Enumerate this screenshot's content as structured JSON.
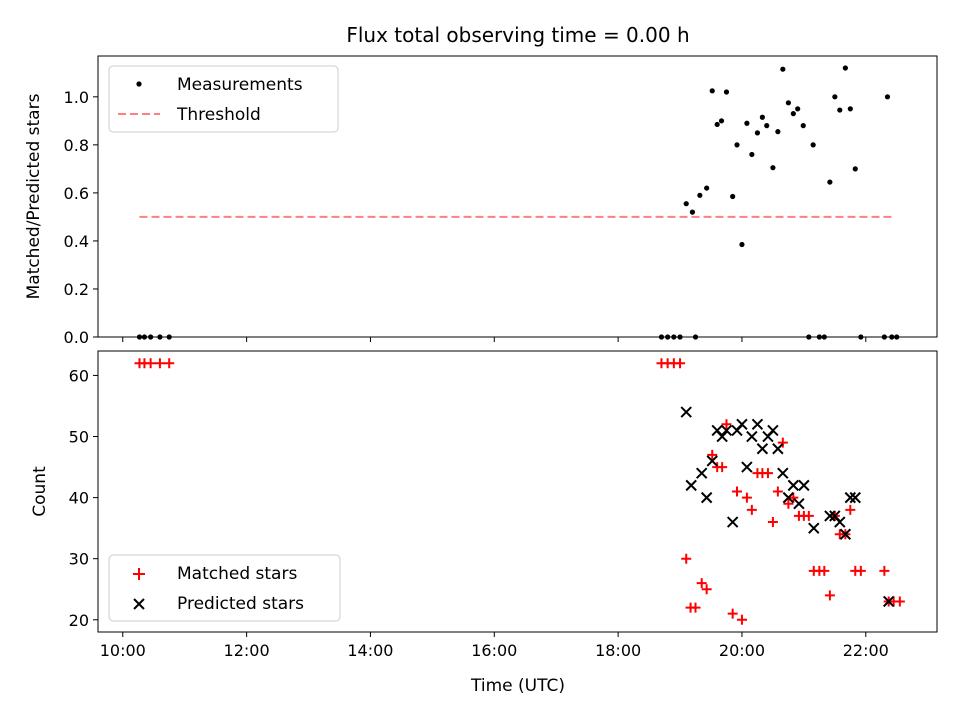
{
  "chart_data": [
    {
      "type": "scatter",
      "title": "Flux total observing time = 0.00 h",
      "xlabel": "",
      "ylabel": "Matched/Predicted stars",
      "xlim": [
        9.6,
        23.15
      ],
      "ylim": [
        0,
        1.17
      ],
      "yticks": [
        0.0,
        0.2,
        0.4,
        0.6,
        0.8,
        1.0
      ],
      "ytick_labels": [
        "0.0",
        "0.2",
        "0.4",
        "0.6",
        "0.8",
        "1.0"
      ],
      "legend_position": "top-left",
      "series": [
        {
          "name": "Measurements",
          "kind": "points",
          "color": "#000000",
          "points": [
            [
              10.27,
              0.0
            ],
            [
              10.35,
              0.0
            ],
            [
              10.45,
              0.0
            ],
            [
              10.6,
              0.0
            ],
            [
              10.75,
              0.0
            ],
            [
              18.7,
              0.0
            ],
            [
              18.8,
              0.0
            ],
            [
              18.9,
              0.0
            ],
            [
              19.0,
              0.0
            ],
            [
              19.1,
              0.555
            ],
            [
              19.2,
              0.52
            ],
            [
              19.25,
              0.0
            ],
            [
              19.32,
              0.59
            ],
            [
              19.43,
              0.62
            ],
            [
              19.52,
              1.025
            ],
            [
              19.6,
              0.885
            ],
            [
              19.67,
              0.9
            ],
            [
              19.75,
              1.02
            ],
            [
              19.85,
              0.585
            ],
            [
              19.92,
              0.8
            ],
            [
              20.0,
              0.385
            ],
            [
              20.08,
              0.89
            ],
            [
              20.16,
              0.76
            ],
            [
              20.25,
              0.85
            ],
            [
              20.33,
              0.915
            ],
            [
              20.4,
              0.88
            ],
            [
              20.5,
              0.705
            ],
            [
              20.58,
              0.855
            ],
            [
              20.66,
              1.115
            ],
            [
              20.75,
              0.975
            ],
            [
              20.83,
              0.93
            ],
            [
              20.9,
              0.95
            ],
            [
              20.99,
              0.88
            ],
            [
              21.08,
              0.0
            ],
            [
              21.15,
              0.8
            ],
            [
              21.25,
              0.0
            ],
            [
              21.33,
              0.0
            ],
            [
              21.42,
              0.645
            ],
            [
              21.5,
              1.0
            ],
            [
              21.58,
              0.945
            ],
            [
              21.67,
              1.12
            ],
            [
              21.75,
              0.95
            ],
            [
              21.83,
              0.7
            ],
            [
              21.92,
              0.0
            ],
            [
              22.3,
              0.0
            ],
            [
              22.35,
              1.0
            ],
            [
              22.42,
              0.0
            ],
            [
              22.5,
              0.0
            ]
          ]
        },
        {
          "name": "Threshold",
          "kind": "dashed-line",
          "color": "#ff8080",
          "points": [
            [
              10.27,
              0.5
            ],
            [
              22.45,
              0.5
            ]
          ]
        }
      ]
    },
    {
      "type": "scatter",
      "title": "",
      "xlabel": "Time (UTC)",
      "ylabel": "Count",
      "xlim": [
        9.6,
        23.15
      ],
      "ylim": [
        18,
        64
      ],
      "xticks": [
        10,
        12,
        14,
        16,
        18,
        20,
        22
      ],
      "xtick_labels": [
        "10:00",
        "12:00",
        "14:00",
        "16:00",
        "18:00",
        "20:00",
        "22:00"
      ],
      "yticks": [
        20,
        30,
        40,
        50,
        60
      ],
      "ytick_labels": [
        "20",
        "30",
        "40",
        "50",
        "60"
      ],
      "legend_position": "bottom-left",
      "series": [
        {
          "name": "Matched stars",
          "kind": "plus",
          "color": "#ff0000",
          "points": [
            [
              10.27,
              62
            ],
            [
              10.35,
              62
            ],
            [
              10.45,
              62
            ],
            [
              10.6,
              62
            ],
            [
              10.75,
              62
            ],
            [
              18.7,
              62
            ],
            [
              18.8,
              62
            ],
            [
              18.9,
              62
            ],
            [
              19.0,
              62
            ],
            [
              19.1,
              30
            ],
            [
              19.17,
              22
            ],
            [
              19.25,
              22
            ],
            [
              19.35,
              26
            ],
            [
              19.43,
              25
            ],
            [
              19.52,
              47
            ],
            [
              19.6,
              45
            ],
            [
              19.68,
              45
            ],
            [
              19.75,
              52
            ],
            [
              19.85,
              21
            ],
            [
              19.92,
              41
            ],
            [
              20.0,
              20
            ],
            [
              20.08,
              40
            ],
            [
              20.16,
              38
            ],
            [
              20.25,
              44
            ],
            [
              20.33,
              44
            ],
            [
              20.42,
              44
            ],
            [
              20.5,
              36
            ],
            [
              20.58,
              41
            ],
            [
              20.66,
              49
            ],
            [
              20.75,
              39
            ],
            [
              20.83,
              40
            ],
            [
              20.92,
              37
            ],
            [
              21.0,
              37
            ],
            [
              21.08,
              37
            ],
            [
              21.16,
              28
            ],
            [
              21.25,
              28
            ],
            [
              21.33,
              28
            ],
            [
              21.42,
              24
            ],
            [
              21.5,
              37
            ],
            [
              21.58,
              34
            ],
            [
              21.67,
              34
            ],
            [
              21.75,
              38
            ],
            [
              21.83,
              28
            ],
            [
              21.92,
              28
            ],
            [
              22.3,
              28
            ],
            [
              22.37,
              23
            ],
            [
              22.45,
              23
            ],
            [
              22.55,
              23
            ]
          ]
        },
        {
          "name": "Predicted stars",
          "kind": "cross",
          "color": "#000000",
          "points": [
            [
              19.1,
              54
            ],
            [
              19.18,
              42
            ],
            [
              19.35,
              44
            ],
            [
              19.43,
              40
            ],
            [
              19.52,
              46
            ],
            [
              19.6,
              51
            ],
            [
              19.68,
              50
            ],
            [
              19.75,
              51
            ],
            [
              19.85,
              36
            ],
            [
              19.92,
              51
            ],
            [
              20.0,
              52
            ],
            [
              20.08,
              45
            ],
            [
              20.16,
              50
            ],
            [
              20.25,
              52
            ],
            [
              20.33,
              48
            ],
            [
              20.42,
              50
            ],
            [
              20.5,
              51
            ],
            [
              20.58,
              48
            ],
            [
              20.66,
              44
            ],
            [
              20.75,
              40
            ],
            [
              20.83,
              42
            ],
            [
              20.92,
              39
            ],
            [
              21.0,
              42
            ],
            [
              21.16,
              35
            ],
            [
              21.42,
              37
            ],
            [
              21.5,
              37
            ],
            [
              21.58,
              36
            ],
            [
              21.67,
              34
            ],
            [
              21.75,
              40
            ],
            [
              21.83,
              40
            ],
            [
              22.37,
              23
            ]
          ]
        }
      ]
    }
  ]
}
